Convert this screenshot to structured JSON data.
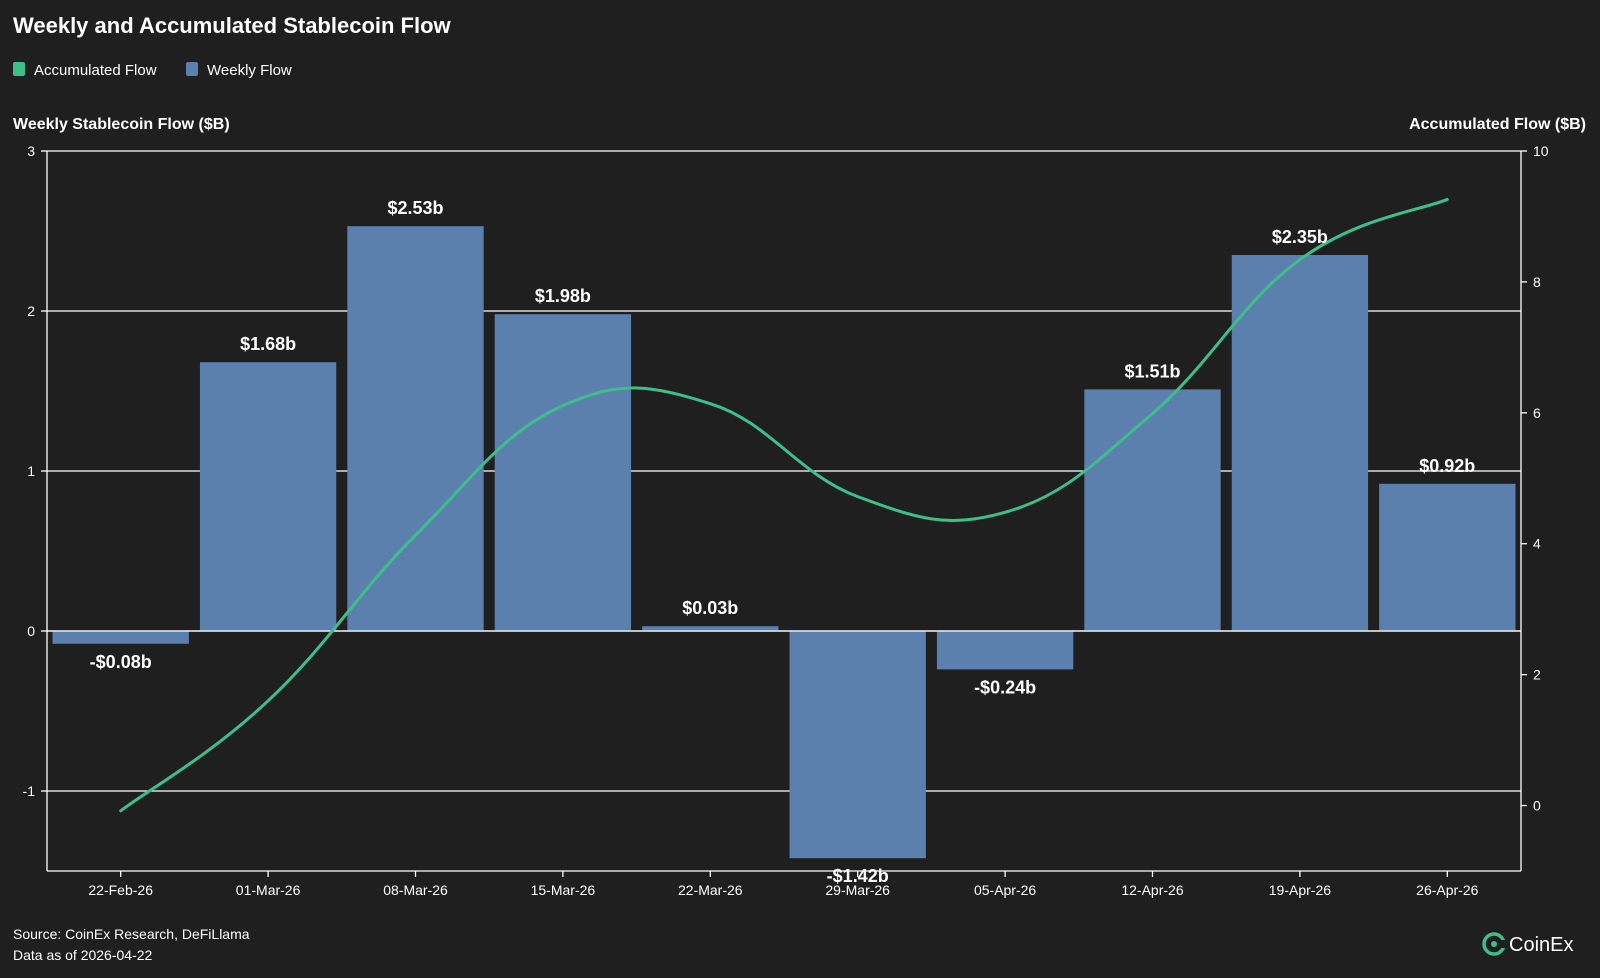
{
  "chart_data": {
    "type": "bar",
    "title": "Weekly and Accumulated Stablecoin Flow",
    "categories": [
      "22-Feb-26",
      "01-Mar-26",
      "08-Mar-26",
      "15-Mar-26",
      "22-Mar-26",
      "29-Mar-26",
      "05-Apr-26",
      "12-Apr-26",
      "19-Apr-26",
      "26-Apr-26"
    ],
    "series": [
      {
        "name": "Weekly Flow",
        "type": "bar",
        "axis": "left",
        "color": "#5b80ad",
        "values": [
          -0.08,
          1.68,
          2.53,
          1.98,
          0.03,
          -1.42,
          -0.24,
          1.51,
          2.35,
          0.92
        ],
        "labels": [
          "-$0.08b",
          "$1.68b",
          "$2.53b",
          "$1.98b",
          "$0.03b",
          "-$1.42b",
          "-$0.24b",
          "$1.51b",
          "$2.35b",
          "$0.92b"
        ]
      },
      {
        "name": "Accumulated Flow",
        "type": "line",
        "axis": "right",
        "color": "#3dbf8a",
        "values": [
          -0.08,
          1.6,
          4.13,
          6.11,
          6.14,
          4.72,
          4.48,
          5.99,
          8.34,
          9.26
        ]
      }
    ],
    "ylabel": "Weekly Stablecoin Flow ($B)",
    "ylabel_right": "Accumulated Flow ($B)",
    "ylim": [
      -1.5,
      3
    ],
    "ylim_right": [
      -1,
      10
    ],
    "yticks": [
      -1,
      0,
      1,
      2,
      3
    ],
    "yticks_right": [
      0,
      2,
      4,
      6,
      8,
      10
    ],
    "grid": true,
    "legend_position": "top-left"
  },
  "footer": {
    "source": "Source: CoinEx Research, DeFiLlama",
    "data_as_of": "Data as of 2026-04-22",
    "brand": "CoinEx"
  }
}
